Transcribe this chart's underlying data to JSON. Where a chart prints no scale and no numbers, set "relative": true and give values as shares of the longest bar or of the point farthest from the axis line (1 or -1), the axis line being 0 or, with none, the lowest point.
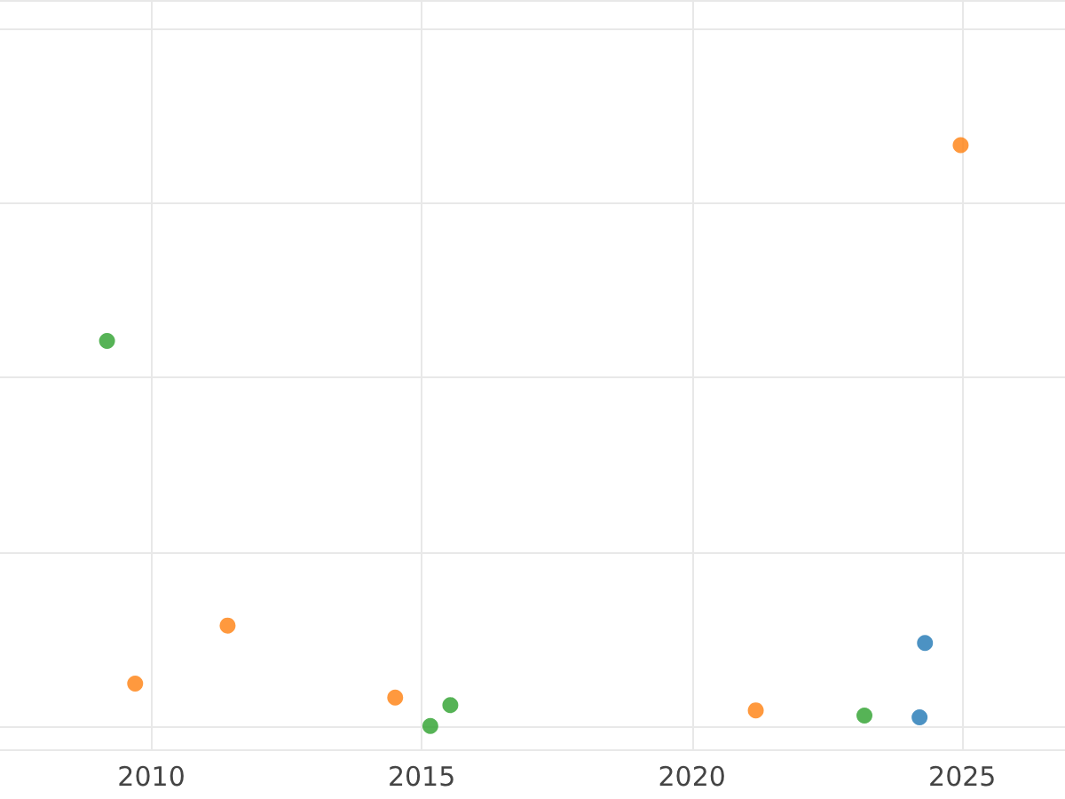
{
  "chart_data": {
    "type": "scatter",
    "relative": true,
    "xlim": [
      2007.2,
      2026.9
    ],
    "xticks": [
      2010,
      2015,
      2020,
      2025
    ],
    "grid": true,
    "marker": "circle",
    "tick_labels": "x",
    "series": [
      {
        "color": "#1f77b4",
        "x": [
          2024.31,
          2024.21
        ],
        "values": [
          0.143,
          0.015
        ]
      },
      {
        "color": "#ff7f0e",
        "x": [
          2009.7,
          2011.41,
          2014.51,
          2021.18,
          2024.97
        ],
        "values": [
          0.073,
          0.173,
          0.049,
          0.027,
          1
        ]
      },
      {
        "color": "#2ca02c",
        "x": [
          2009.18,
          2015.16,
          2015.53,
          2023.19
        ],
        "values": [
          0.663,
          0,
          0.036,
          0.018
        ]
      }
    ]
  }
}
